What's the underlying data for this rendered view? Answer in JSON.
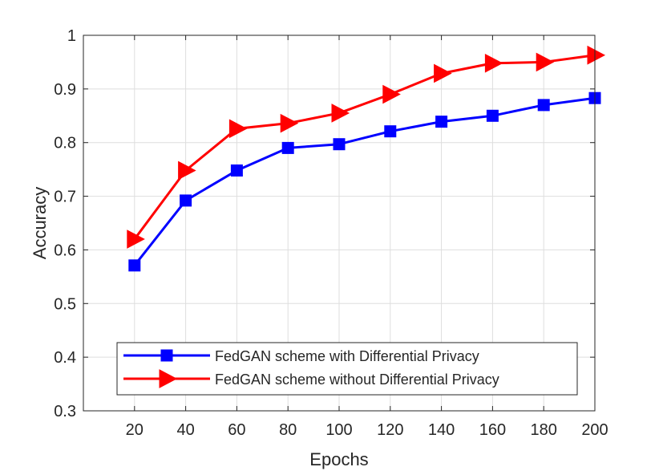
{
  "chart_data": {
    "type": "line",
    "title": "",
    "xlabel": "Epochs",
    "ylabel": "Accuracy",
    "xlim": [
      0,
      200
    ],
    "ylim": [
      0.3,
      1.0
    ],
    "x_ticks": [
      20,
      40,
      60,
      80,
      100,
      120,
      140,
      160,
      180,
      200
    ],
    "y_ticks": [
      0.3,
      0.4,
      0.5,
      0.6,
      0.7,
      0.8,
      0.9,
      1.0
    ],
    "y_tick_labels": [
      "0.3",
      "0.4",
      "0.5",
      "0.6",
      "0.7",
      "0.8",
      "0.9",
      "1"
    ],
    "grid": true,
    "legend_position": "bottom-center",
    "x": [
      20,
      40,
      60,
      80,
      100,
      120,
      140,
      160,
      180,
      200
    ],
    "series": [
      {
        "name": "FedGAN scheme with Differential Privacy",
        "color": "#0000ff",
        "marker": "square",
        "values": [
          0.571,
          0.692,
          0.748,
          0.79,
          0.797,
          0.821,
          0.839,
          0.85,
          0.87,
          0.883
        ]
      },
      {
        "name": "FedGAN scheme without Differential Privacy",
        "color": "#ff0000",
        "marker": "triangle-right",
        "values": [
          0.62,
          0.748,
          0.826,
          0.836,
          0.855,
          0.89,
          0.929,
          0.948,
          0.95,
          0.963
        ]
      }
    ]
  }
}
